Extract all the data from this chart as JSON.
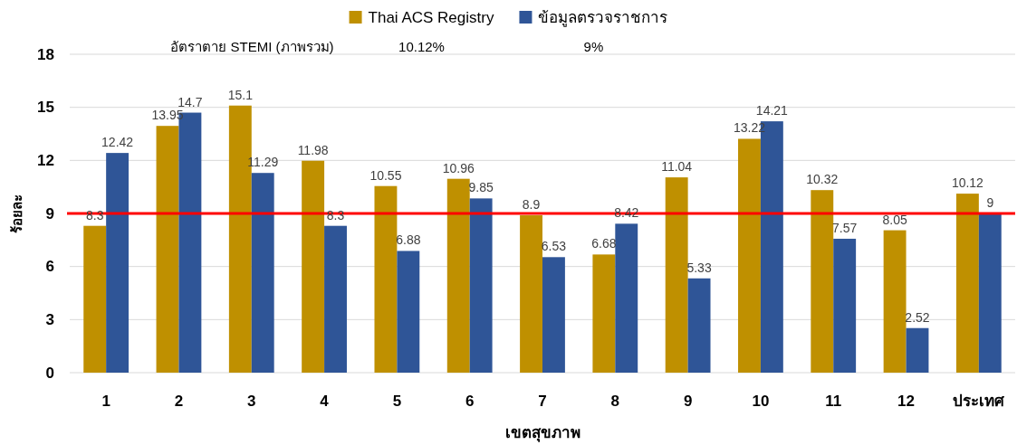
{
  "chart_data": {
    "type": "bar",
    "xlabel": "เขตสุขภาพ",
    "ylabel": "ร้อยละ",
    "categories": [
      "1",
      "2",
      "3",
      "4",
      "5",
      "6",
      "7",
      "8",
      "9",
      "10",
      "11",
      "12",
      "ประเทศ"
    ],
    "series": [
      {
        "name": "Thai ACS Registry",
        "color": "#bf9000",
        "values": [
          8.3,
          13.95,
          15.1,
          11.98,
          10.55,
          10.96,
          8.9,
          6.68,
          11.04,
          13.22,
          10.32,
          8.05,
          10.12
        ]
      },
      {
        "name": "ข้อมูลตรวจราชการ",
        "color": "#2f5597",
        "values": [
          12.42,
          14.7,
          11.29,
          8.3,
          6.88,
          9.85,
          6.53,
          8.42,
          5.33,
          14.21,
          7.57,
          2.52,
          9
        ]
      }
    ],
    "ylim": [
      0,
      18
    ],
    "yticks": [
      0,
      3,
      6,
      9,
      12,
      15,
      18
    ],
    "grid": "y",
    "legend": "top",
    "data_labels": true,
    "ref_lines": [
      {
        "axis": "y",
        "value": 9,
        "color": "#ff0000"
      }
    ],
    "annotations": [
      "อัตราตาย STEMI (ภาพรวม)",
      "10.12%",
      "9%"
    ]
  }
}
